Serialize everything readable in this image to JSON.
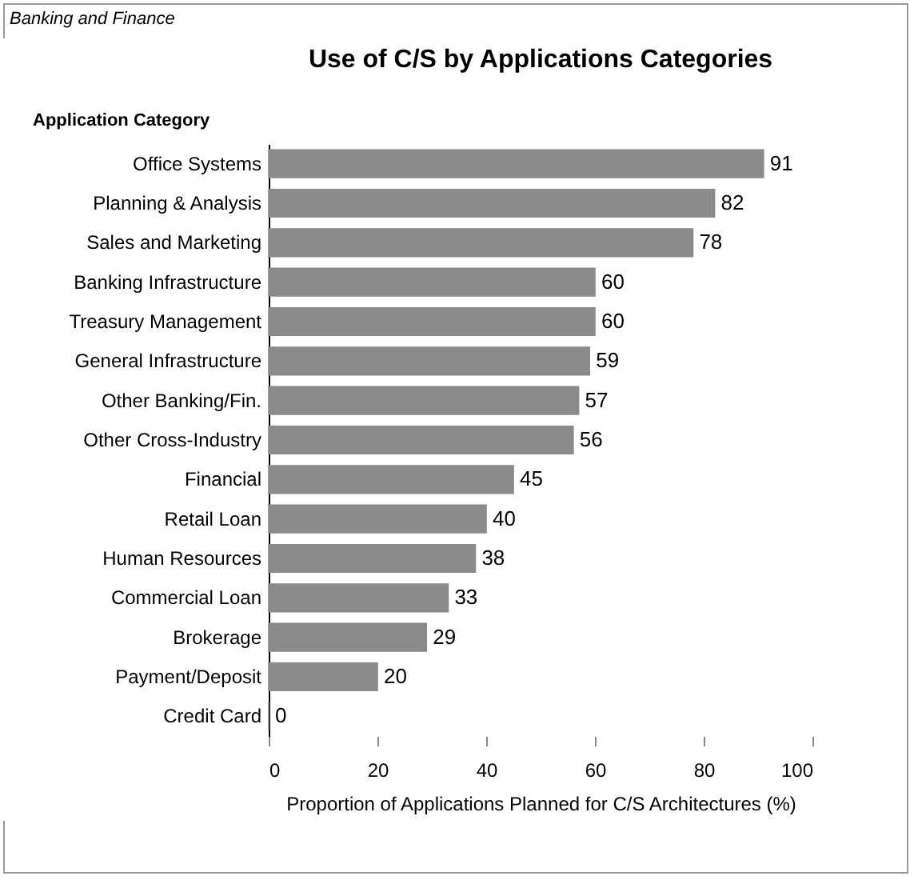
{
  "chart_data": {
    "type": "bar",
    "orientation": "horizontal",
    "title": "Use of C/S by Applications Categories",
    "annotations": [
      "Banking and Finance"
    ],
    "ylabel": "Application Category",
    "xlabel": "Proportion of Applications Planned for C/S Architectures (%)",
    "categories": [
      "Office Systems",
      "Planning & Analysis",
      "Sales and Marketing",
      "Banking Infrastructure",
      "Treasury Management",
      "General Infrastructure",
      "Other Banking/Fin.",
      "Other Cross-Industry",
      "Financial",
      "Retail Loan",
      "Human Resources",
      "Commercial Loan",
      "Brokerage",
      "Payment/Deposit",
      "Credit Card"
    ],
    "values": [
      91,
      82,
      78,
      60,
      60,
      59,
      57,
      56,
      45,
      40,
      38,
      33,
      29,
      20,
      0
    ],
    "color": "#8a8a8a",
    "xlim": [
      0,
      100
    ],
    "xticks": [
      0,
      20,
      40,
      60,
      80,
      100
    ],
    "data_labels": true
  }
}
